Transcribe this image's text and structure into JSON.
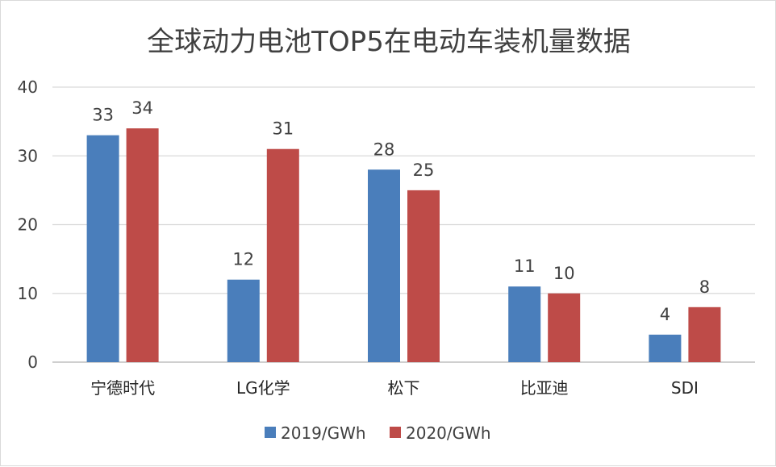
{
  "chart_data": {
    "type": "bar",
    "title": "全球动力电池TOP5在电动车装机量数据",
    "categories": [
      "宁德时代",
      "LG化学",
      "松下",
      "比亚迪",
      "SDI"
    ],
    "series": [
      {
        "name": "2019/GWh",
        "values": [
          33,
          12,
          28,
          11,
          4
        ],
        "color": "#4a7ebb"
      },
      {
        "name": "2020/GWh",
        "values": [
          34,
          31,
          25,
          10,
          8
        ],
        "color": "#be4b48"
      }
    ],
    "ylim": [
      0,
      40
    ],
    "yticks": [
      0,
      10,
      20,
      30,
      40
    ],
    "grid": true,
    "legend": "bottom-center",
    "xlabel": "",
    "ylabel": "",
    "data_label_colors": {
      "default": "#404040",
      "highlight": "#3e6b34"
    }
  }
}
